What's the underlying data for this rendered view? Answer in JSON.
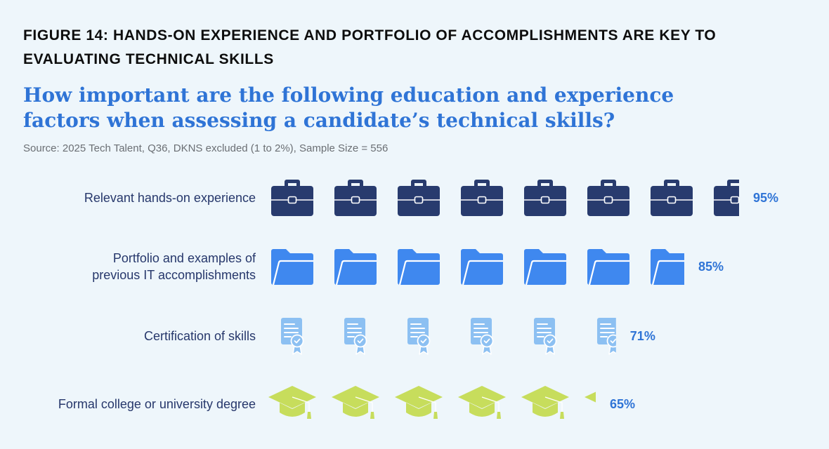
{
  "figure_title": "FIGURE 14: HANDS-ON EXPERIENCE AND PORTFOLIO OF ACCOMPLISHMENTS ARE KEY TO EVALUATING TECHNICAL SKILLS",
  "question": "How important are the following education and experience factors when assessing a candidate’s technical skills?",
  "source": "Source: 2025 Tech Talent, Q36, DKNS excluded (1 to 2%), Sample Size = 556",
  "colors": {
    "briefcase": "#283b6e",
    "folder": "#3f88ef",
    "certificate": "#8cc0f2",
    "graduation_cap": "#c7dd5c",
    "percent_text": "#2f74d6",
    "label_text": "#26376b"
  },
  "chart_data": {
    "type": "pictograph",
    "title": "FIGURE 14: HANDS-ON EXPERIENCE AND PORTFOLIO OF ACCOMPLISHMENTS ARE KEY TO EVALUATING TECHNICAL SKILLS",
    "unit_per_icon": 12.5,
    "scale_max": 100,
    "rows": [
      {
        "label_lines": [
          "Relevant hands-on experience"
        ],
        "value": 95,
        "value_label": "95%",
        "icon": "briefcase-icon"
      },
      {
        "label_lines": [
          "Portfolio and examples of",
          "previous IT accomplishments"
        ],
        "value": 85,
        "value_label": "85%",
        "icon": "folder-icon"
      },
      {
        "label_lines": [
          "Certification of skills"
        ],
        "value": 71,
        "value_label": "71%",
        "icon": "certificate-icon"
      },
      {
        "label_lines": [
          "Formal college or university degree"
        ],
        "value": 65,
        "value_label": "65%",
        "icon": "graduation-cap-icon"
      }
    ]
  }
}
